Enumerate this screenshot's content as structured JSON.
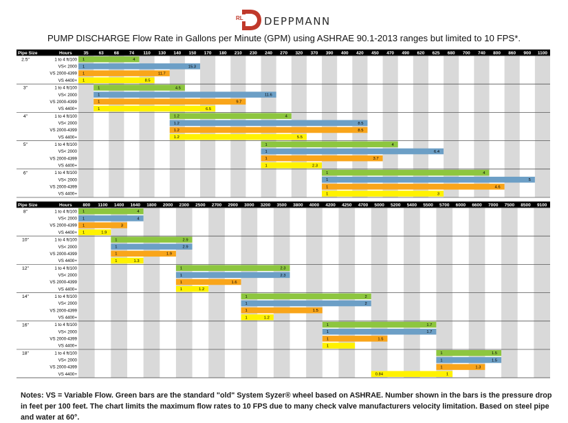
{
  "brand": {
    "mark": "RL",
    "name": "DEPPMANN",
    "color": "#c0392b"
  },
  "title": "PUMP DISCHARGE Flow Rate in Gallons per Minute (GPM)  using ASHRAE 90.1-2013 ranges but limited to 10 FPS*.",
  "notes": "Notes: VS = Variable Flow. Green bars are the standard \"old\" System Syzer® wheel based on ASHRAE. Number shown in the bars is the pressure drop in feet per 100 feet. The chart limits the maximum flow rates to 10 FPS  due to many check valve manufacturers velocity limitation. Based on steel pipe and water at 60°.",
  "colors": {
    "row0": "#8dc63f",
    "row1": "#6c9fc6",
    "row2": "#f9a51a",
    "row3": "#fff200",
    "header": "#000000",
    "stripe": "#d9d9d9"
  },
  "chart_data": [
    {
      "type": "bar",
      "header": {
        "pipe": "Pipe Size",
        "hours": "Hours"
      },
      "x": [
        "35",
        "63",
        "68",
        "74",
        "110",
        "130",
        "140",
        "150",
        "170",
        "180",
        "210",
        "230",
        "240",
        "270",
        "320",
        "370",
        "390",
        "400",
        "420",
        "450",
        "470",
        "490",
        "620",
        "625",
        "680",
        "700",
        "740",
        "800",
        "860",
        "900",
        "1100"
      ],
      "rows": [
        "1 to 4 ft/100",
        "VS< 2000",
        "VS 2000-4399",
        "VS 4400+"
      ],
      "groups": [
        {
          "pipe": "2.5\"",
          "bars": [
            {
              "start": "35",
              "end": "74",
              "start_label": "1",
              "end_label": "4"
            },
            {
              "start": "35",
              "end": "150",
              "start_label": "1",
              "end_label": "15.3"
            },
            {
              "start": "35",
              "end": "130",
              "start_label": "1",
              "end_label": "11.7"
            },
            {
              "start": "35",
              "end": "110",
              "start_label": "1",
              "end_label": "8.5"
            }
          ]
        },
        {
          "pipe": "3\"",
          "bars": [
            {
              "start": "63",
              "end": "140",
              "start_label": "1",
              "end_label": "4.5"
            },
            {
              "start": "63",
              "end": "240",
              "start_label": "1",
              "end_label": "11.6"
            },
            {
              "start": "63",
              "end": "210",
              "start_label": "1",
              "end_label": "9.7"
            },
            {
              "start": "63",
              "end": "170",
              "start_label": "1",
              "end_label": "6.5"
            }
          ]
        },
        {
          "pipe": "4\"",
          "bars": [
            {
              "start": "140",
              "end": "270",
              "start_label": "1.2",
              "end_label": "4"
            },
            {
              "start": "140",
              "end": "420",
              "start_label": "1.2",
              "end_label": "8.5"
            },
            {
              "start": "140",
              "end": "420",
              "start_label": "1.2",
              "end_label": "8.5"
            },
            {
              "start": "140",
              "end": "320",
              "start_label": "1.2",
              "end_label": "5.5"
            }
          ]
        },
        {
          "pipe": "5\"",
          "bars": [
            {
              "start": "240",
              "end": "470",
              "start_label": "1",
              "end_label": "4"
            },
            {
              "start": "240",
              "end": "625",
              "start_label": "1",
              "end_label": "6.4"
            },
            {
              "start": "240",
              "end": "450",
              "start_label": "1",
              "end_label": "3.7"
            },
            {
              "start": "240",
              "end": "370",
              "start_label": "1",
              "end_label": "2.3"
            }
          ]
        },
        {
          "pipe": "6\"",
          "bars": [
            {
              "start": "390",
              "end": "740",
              "start_label": "1",
              "end_label": "4"
            },
            {
              "start": "390",
              "end": "900",
              "start_label": "1",
              "end_label": "5"
            },
            {
              "start": "390",
              "end": "800",
              "start_label": "1",
              "end_label": "4.6"
            },
            {
              "start": "390",
              "end": "625",
              "start_label": "1",
              "end_label": "3"
            }
          ]
        }
      ]
    },
    {
      "type": "bar",
      "header": {
        "pipe": "Pipe Size",
        "hours": "Hours"
      },
      "x": [
        "800",
        "1100",
        "1400",
        "1640",
        "1800",
        "2000",
        "2300",
        "2500",
        "2700",
        "2900",
        "3000",
        "3200",
        "3500",
        "3800",
        "4000",
        "4200",
        "4250",
        "4700",
        "5000",
        "5200",
        "5400",
        "5500",
        "5700",
        "6000",
        "6600",
        "7000",
        "7500",
        "8500",
        "9100"
      ],
      "rows": [
        "1 to 4 ft/100",
        "VS< 2000",
        "VS 2000-4399",
        "VS 4400+"
      ],
      "groups": [
        {
          "pipe": "8\"",
          "bars": [
            {
              "start": "800",
              "end": "1640",
              "start_label": "1",
              "end_label": "4"
            },
            {
              "start": "800",
              "end": "1640",
              "start_label": "1",
              "end_label": "4"
            },
            {
              "start": "800",
              "end": "1400",
              "start_label": "1",
              "end_label": "3"
            },
            {
              "start": "800",
              "end": "1100",
              "start_label": "1",
              "end_label": "1.9"
            }
          ]
        },
        {
          "pipe": "10\"",
          "bars": [
            {
              "start": "1400",
              "end": "2300",
              "start_label": "1",
              "end_label": "2.9"
            },
            {
              "start": "1400",
              "end": "2300",
              "start_label": "1",
              "end_label": "2.9"
            },
            {
              "start": "1400",
              "end": "2000",
              "start_label": "1",
              "end_label": "1.9"
            },
            {
              "start": "1400",
              "end": "1640",
              "start_label": "1",
              "end_label": "1.3"
            }
          ]
        },
        {
          "pipe": "12\"",
          "bars": [
            {
              "start": "2300",
              "end": "3500",
              "start_label": "1",
              "end_label": "2.3"
            },
            {
              "start": "2300",
              "end": "3500",
              "start_label": "1",
              "end_label": "2.3"
            },
            {
              "start": "2300",
              "end": "2900",
              "start_label": "1",
              "end_label": "1.6"
            },
            {
              "start": "2300",
              "end": "2500",
              "start_label": "1",
              "end_label": "1.2"
            }
          ]
        },
        {
          "pipe": "14\"",
          "bars": [
            {
              "start": "3000",
              "end": "4700",
              "start_label": "1",
              "end_label": "2"
            },
            {
              "start": "3000",
              "end": "4700",
              "start_label": "1",
              "end_label": "2"
            },
            {
              "start": "3000",
              "end": "4000",
              "start_label": "1",
              "end_label": "1.5"
            },
            {
              "start": "3000",
              "end": "3200",
              "start_label": "1",
              "end_label": "1.2"
            }
          ]
        },
        {
          "pipe": "16\"",
          "bars": [
            {
              "start": "4200",
              "end": "5500",
              "start_label": "1",
              "end_label": "1.7"
            },
            {
              "start": "4200",
              "end": "5500",
              "start_label": "1",
              "end_label": "1.7"
            },
            {
              "start": "4200",
              "end": "5000",
              "start_label": "1",
              "end_label": "1.5"
            },
            {
              "start": "4200",
              "end": "4250",
              "start_label": "1",
              "end_label": ""
            }
          ]
        },
        {
          "pipe": "18\"",
          "bars": [
            {
              "start": "5700",
              "end": "7000",
              "start_label": "1",
              "end_label": "1.5"
            },
            {
              "start": "5700",
              "end": "7000",
              "start_label": "1",
              "end_label": "1.5"
            },
            {
              "start": "5700",
              "end": "6600",
              "start_label": "1",
              "end_label": "1.3"
            },
            {
              "start": "5000",
              "end": "5700",
              "start_label": "0.84",
              "end_label": "1"
            }
          ]
        }
      ]
    }
  ]
}
